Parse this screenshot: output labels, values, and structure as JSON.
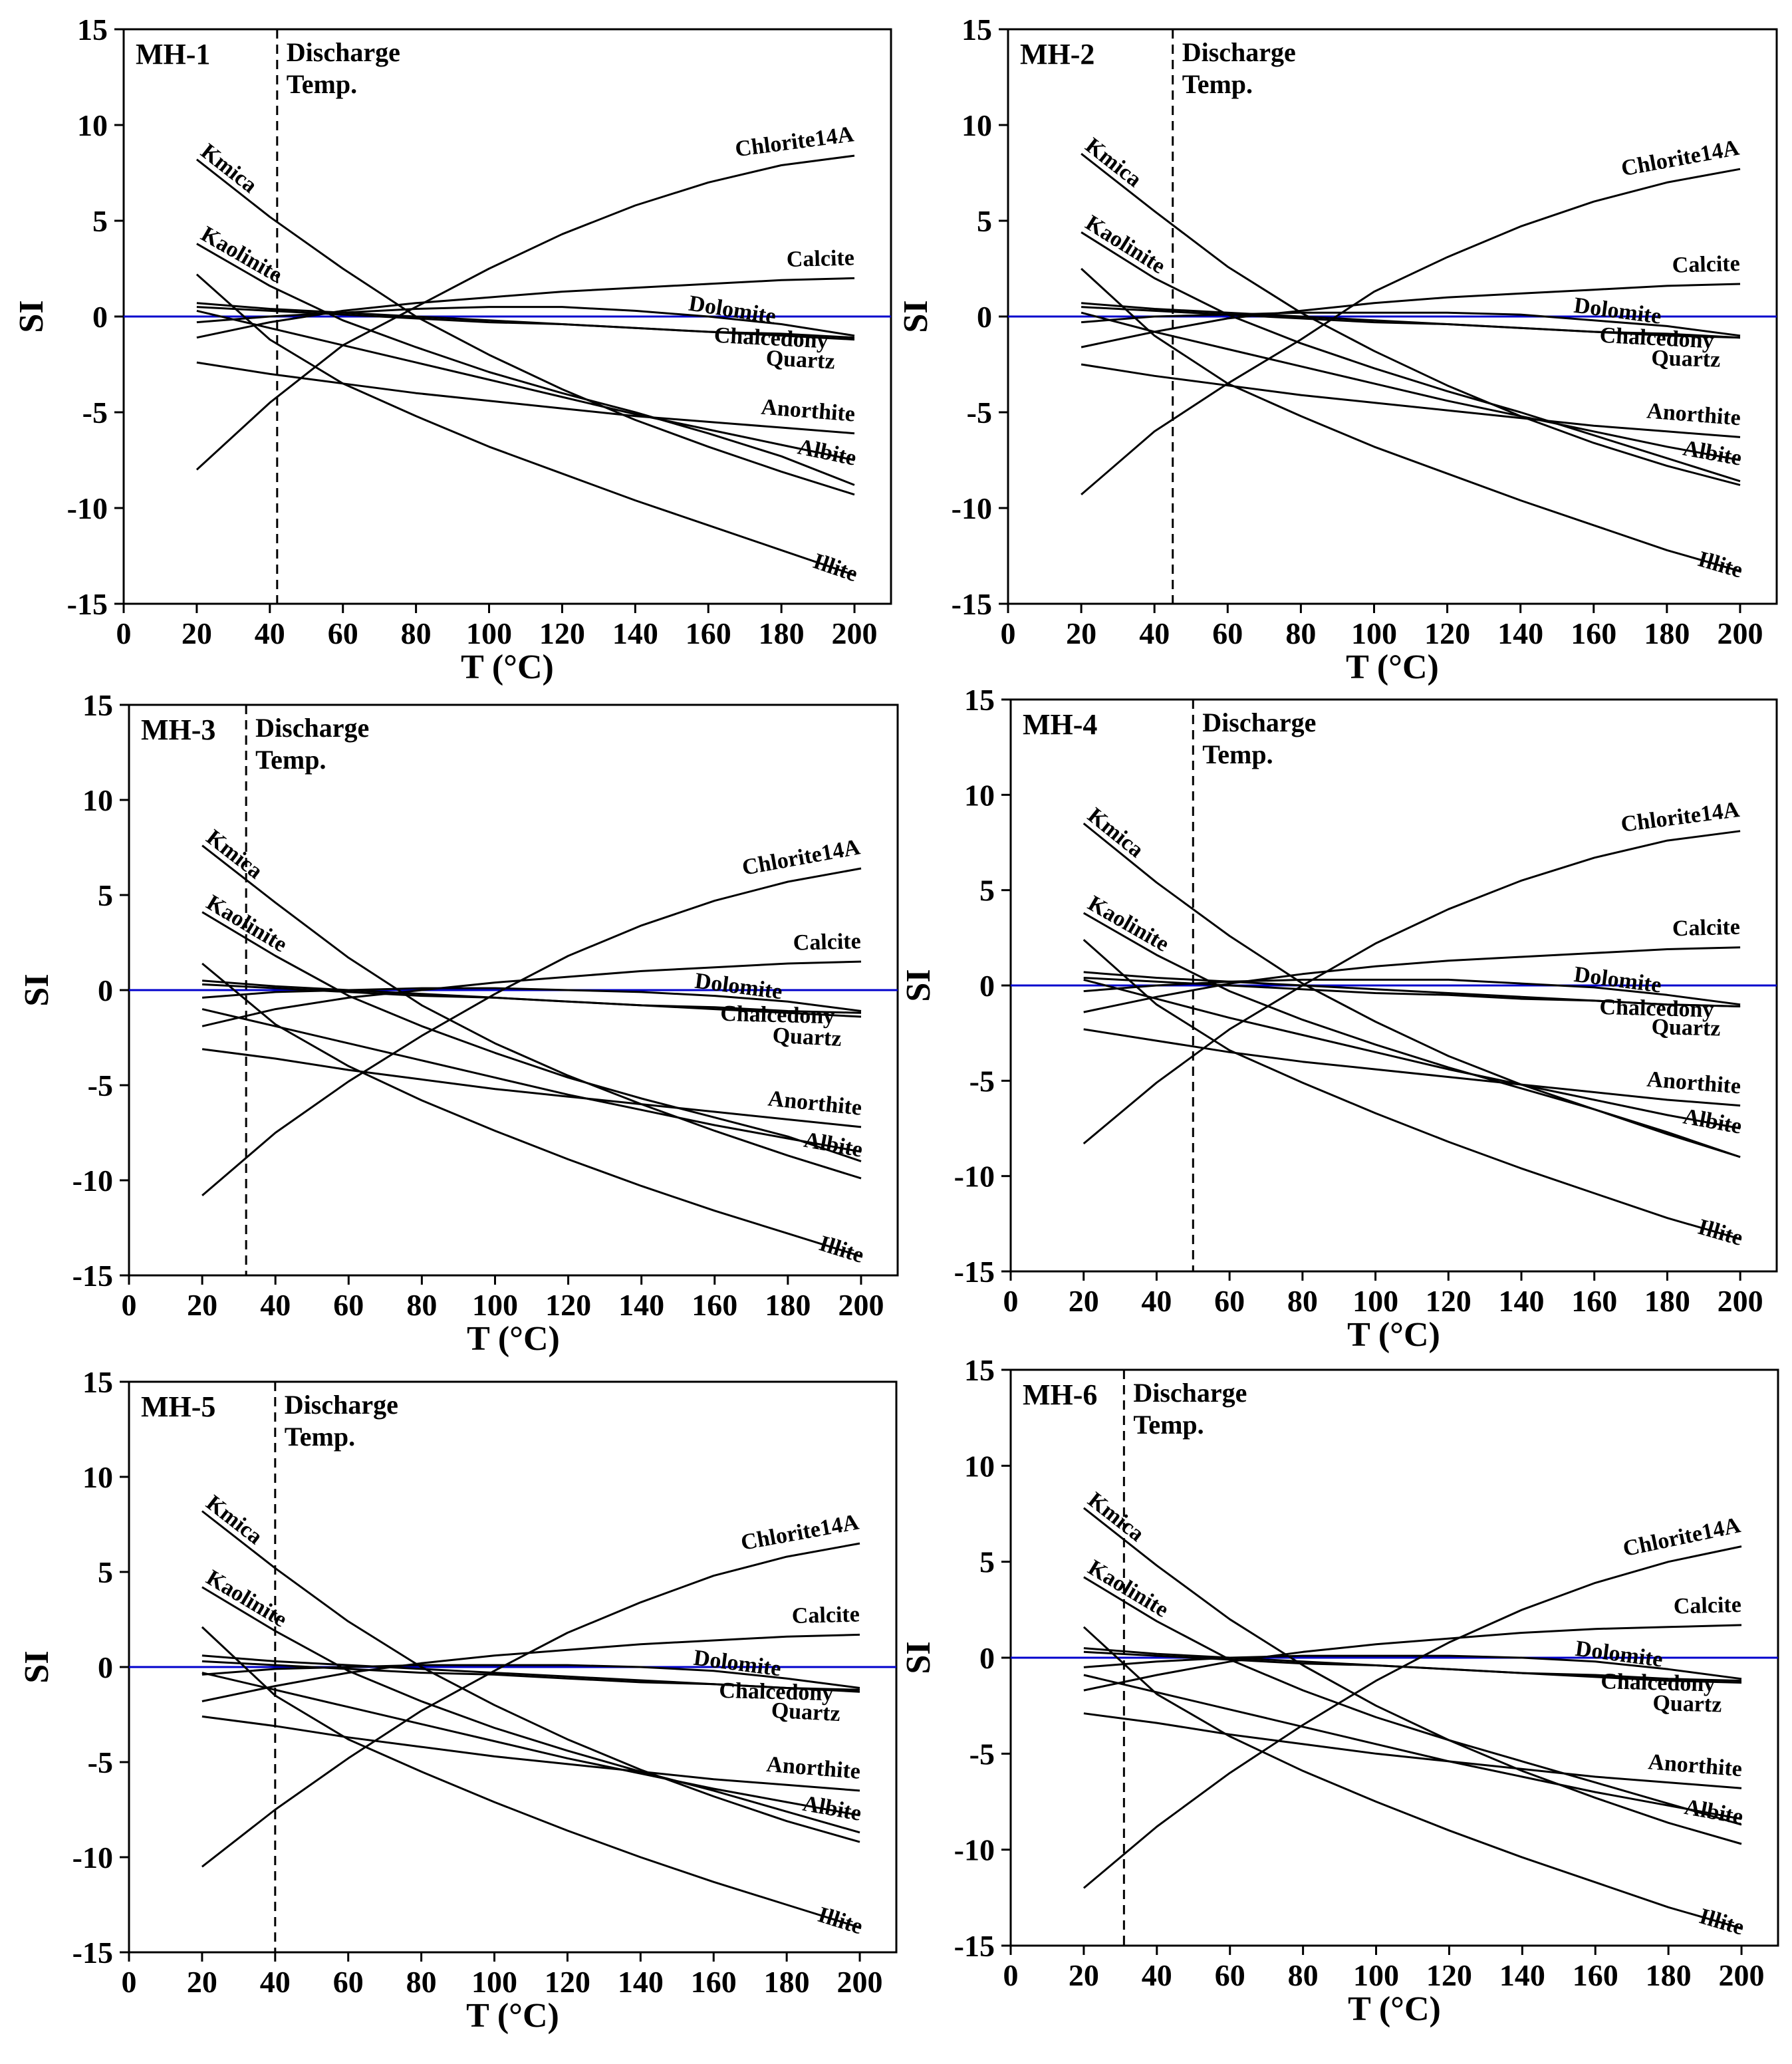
{
  "figure": {
    "x_axis_title": "T (°C)",
    "y_axis_title": "SI",
    "discharge_label_line1": "Discharge",
    "discharge_label_line2": "Temp.",
    "colors": {
      "curve": "#000000",
      "zero_line": "#0000cc",
      "axis": "#000000"
    }
  },
  "chart_data": [
    {
      "type": "line",
      "title": "MH-1",
      "xlabel": "T (°C)",
      "ylabel": "SI",
      "xlim": [
        0,
        210
      ],
      "ylim": [
        -15,
        15
      ],
      "xticks": [
        0,
        20,
        40,
        60,
        80,
        100,
        120,
        140,
        160,
        180,
        200
      ],
      "yticks": [
        -15,
        -10,
        -5,
        0,
        5,
        10,
        15
      ],
      "discharge_temp": 42,
      "x": [
        20,
        40,
        60,
        80,
        100,
        120,
        140,
        160,
        180,
        200
      ],
      "series": [
        {
          "name": "Chlorite14A",
          "values": [
            -8,
            -4.5,
            -1.5,
            0.5,
            2.5,
            4.3,
            5.8,
            7,
            7.9,
            8.4
          ]
        },
        {
          "name": "Kmica",
          "values": [
            8.2,
            5.2,
            2.5,
            0,
            -2,
            -3.8,
            -5.4,
            -6.8,
            -8.1,
            -9.3
          ]
        },
        {
          "name": "Kaolinite",
          "values": [
            3.8,
            1.6,
            -0.2,
            -1.6,
            -2.9,
            -4.0,
            -5.0,
            -6.1,
            -7.3,
            -8.8
          ]
        },
        {
          "name": "Calcite",
          "values": [
            -1.1,
            -0.3,
            0.3,
            0.7,
            1.0,
            1.3,
            1.5,
            1.7,
            1.9,
            2.0
          ]
        },
        {
          "name": "Dolomite",
          "values": [
            -0.3,
            0,
            0.2,
            0.4,
            0.5,
            0.5,
            0.3,
            0,
            -0.4,
            -1.0
          ]
        },
        {
          "name": "Chalcedony",
          "values": [
            0.5,
            0.3,
            0.1,
            -0.1,
            -0.3,
            -0.4,
            -0.6,
            -0.8,
            -0.9,
            -1.1
          ]
        },
        {
          "name": "Quartz",
          "values": [
            0.7,
            0.4,
            0.2,
            0,
            -0.2,
            -0.4,
            -0.6,
            -0.8,
            -1.0,
            -1.2
          ]
        },
        {
          "name": "Anorthite",
          "values": [
            -2.4,
            -3,
            -3.5,
            -4,
            -4.4,
            -4.8,
            -5.2,
            -5.5,
            -5.8,
            -6.1
          ]
        },
        {
          "name": "Albite",
          "values": [
            0.3,
            -0.6,
            -1.5,
            -2.4,
            -3.3,
            -4.2,
            -5.1,
            -5.9,
            -6.7,
            -7.5
          ]
        },
        {
          "name": "Illite",
          "values": [
            2.2,
            -1.2,
            -3.5,
            -5.2,
            -6.8,
            -8.2,
            -9.6,
            -10.9,
            -12.2,
            -13.5
          ]
        }
      ]
    },
    {
      "type": "line",
      "title": "MH-2",
      "xlabel": "T (°C)",
      "ylabel": "SI",
      "xlim": [
        0,
        210
      ],
      "ylim": [
        -15,
        15
      ],
      "xticks": [
        0,
        20,
        40,
        60,
        80,
        100,
        120,
        140,
        160,
        180,
        200
      ],
      "yticks": [
        -15,
        -10,
        -5,
        0,
        5,
        10,
        15
      ],
      "discharge_temp": 45,
      "x": [
        20,
        40,
        60,
        80,
        100,
        120,
        140,
        160,
        180,
        200
      ],
      "series": [
        {
          "name": "Chlorite14A",
          "values": [
            -9.3,
            -6,
            -3.5,
            -1.2,
            1.3,
            3.1,
            4.7,
            6,
            7,
            7.7
          ]
        },
        {
          "name": "Kmica",
          "values": [
            8.5,
            5.5,
            2.6,
            0.2,
            -1.8,
            -3.6,
            -5.2,
            -6.6,
            -7.8,
            -8.8
          ]
        },
        {
          "name": "Kaolinite",
          "values": [
            4.4,
            2.0,
            0.1,
            -1.4,
            -2.7,
            -3.9,
            -5.0,
            -6.2,
            -7.4,
            -8.6
          ]
        },
        {
          "name": "Calcite",
          "values": [
            -1.6,
            -0.8,
            -0.1,
            0.3,
            0.7,
            1.0,
            1.2,
            1.4,
            1.6,
            1.7
          ]
        },
        {
          "name": "Dolomite",
          "values": [
            -0.3,
            0,
            0.1,
            0.2,
            0.2,
            0.2,
            0.1,
            -0.2,
            -0.5,
            -1.0
          ]
        },
        {
          "name": "Chalcedony",
          "values": [
            0.5,
            0.3,
            0.1,
            -0.1,
            -0.3,
            -0.4,
            -0.6,
            -0.8,
            -0.9,
            -1.1
          ]
        },
        {
          "name": "Quartz",
          "values": [
            0.7,
            0.4,
            0.2,
            0,
            -0.2,
            -0.4,
            -0.6,
            -0.8,
            -1.0,
            -1.1
          ]
        },
        {
          "name": "Anorthite",
          "values": [
            -2.5,
            -3.1,
            -3.6,
            -4.1,
            -4.5,
            -4.9,
            -5.3,
            -5.7,
            -6.0,
            -6.3
          ]
        },
        {
          "name": "Albite",
          "values": [
            0.2,
            -0.8,
            -1.7,
            -2.6,
            -3.5,
            -4.4,
            -5.2,
            -6.0,
            -6.8,
            -7.5
          ]
        },
        {
          "name": "Illite",
          "values": [
            2.5,
            -1,
            -3.5,
            -5.2,
            -6.8,
            -8.2,
            -9.6,
            -10.9,
            -12.2,
            -13.3
          ]
        }
      ]
    },
    {
      "type": "line",
      "title": "MH-3",
      "xlabel": "T (°C)",
      "ylabel": "SI",
      "xlim": [
        0,
        210
      ],
      "ylim": [
        -15,
        15
      ],
      "xticks": [
        0,
        20,
        40,
        60,
        80,
        100,
        120,
        140,
        160,
        180,
        200
      ],
      "yticks": [
        -15,
        -10,
        -5,
        0,
        5,
        10,
        15
      ],
      "discharge_temp": 32,
      "x": [
        20,
        40,
        60,
        80,
        100,
        120,
        140,
        160,
        180,
        200
      ],
      "series": [
        {
          "name": "Chlorite14A",
          "values": [
            -10.8,
            -7.5,
            -4.8,
            -2.4,
            -0.2,
            1.8,
            3.4,
            4.7,
            5.7,
            6.4
          ]
        },
        {
          "name": "Kmica",
          "values": [
            7.6,
            4.6,
            1.7,
            -0.8,
            -2.8,
            -4.5,
            -6.0,
            -7.4,
            -8.7,
            -9.9
          ]
        },
        {
          "name": "Kaolinite",
          "values": [
            4.1,
            1.8,
            -0.3,
            -1.9,
            -3.3,
            -4.6,
            -5.7,
            -6.7,
            -7.7,
            -9.0
          ]
        },
        {
          "name": "Calcite",
          "values": [
            -1.9,
            -1.0,
            -0.4,
            0,
            0.4,
            0.7,
            1.0,
            1.2,
            1.4,
            1.5
          ]
        },
        {
          "name": "Dolomite",
          "values": [
            -0.4,
            -0.1,
            0,
            0.1,
            0.1,
            0,
            -0.1,
            -0.3,
            -0.6,
            -1.1
          ]
        },
        {
          "name": "Chalcedony",
          "values": [
            0.3,
            0.1,
            -0.1,
            -0.3,
            -0.4,
            -0.6,
            -0.8,
            -0.9,
            -1.1,
            -1.2
          ]
        },
        {
          "name": "Quartz",
          "values": [
            0.5,
            0.2,
            0,
            -0.2,
            -0.4,
            -0.6,
            -0.8,
            -1.0,
            -1.2,
            -1.4
          ]
        },
        {
          "name": "Anorthite",
          "values": [
            -3.1,
            -3.6,
            -4.2,
            -4.7,
            -5.2,
            -5.6,
            -6.0,
            -6.4,
            -6.8,
            -7.2
          ]
        },
        {
          "name": "Albite",
          "values": [
            -1.0,
            -1.9,
            -2.8,
            -3.7,
            -4.6,
            -5.5,
            -6.3,
            -7.1,
            -7.8,
            -8.5
          ]
        },
        {
          "name": "Illite",
          "values": [
            1.4,
            -1.8,
            -4.0,
            -5.8,
            -7.4,
            -8.9,
            -10.3,
            -11.6,
            -12.8,
            -14.0
          ]
        }
      ]
    },
    {
      "type": "line",
      "title": "MH-4",
      "xlabel": "T (°C)",
      "ylabel": "SI",
      "xlim": [
        0,
        210
      ],
      "ylim": [
        -15,
        15
      ],
      "xticks": [
        0,
        20,
        40,
        60,
        80,
        100,
        120,
        140,
        160,
        180,
        200
      ],
      "yticks": [
        -15,
        -10,
        -5,
        0,
        5,
        10,
        15
      ],
      "discharge_temp": 50,
      "x": [
        20,
        40,
        60,
        80,
        100,
        120,
        140,
        160,
        180,
        200
      ],
      "series": [
        {
          "name": "Chlorite14A",
          "values": [
            -8.3,
            -5.1,
            -2.3,
            0,
            2.2,
            4,
            5.5,
            6.7,
            7.6,
            8.1
          ]
        },
        {
          "name": "Kmica",
          "values": [
            8.5,
            5.4,
            2.6,
            0.1,
            -1.9,
            -3.7,
            -5.2,
            -6.5,
            -7.8,
            -9.0
          ]
        },
        {
          "name": "Kaolinite",
          "values": [
            3.8,
            1.6,
            -0.3,
            -1.8,
            -3.1,
            -4.3,
            -5.4,
            -6.5,
            -7.7,
            -9.0
          ]
        },
        {
          "name": "Calcite",
          "values": [
            -1.4,
            -0.6,
            0.1,
            0.6,
            1.0,
            1.3,
            1.5,
            1.7,
            1.9,
            2.0
          ]
        },
        {
          "name": "Dolomite",
          "values": [
            -0.3,
            0,
            0.2,
            0.3,
            0.3,
            0.3,
            0.1,
            -0.1,
            -0.5,
            -1.0
          ]
        },
        {
          "name": "Chalcedony",
          "values": [
            0.4,
            0.2,
            0,
            -0.2,
            -0.4,
            -0.5,
            -0.7,
            -0.8,
            -1.0,
            -1.1
          ]
        },
        {
          "name": "Quartz",
          "values": [
            0.7,
            0.4,
            0.2,
            0,
            -0.2,
            -0.4,
            -0.6,
            -0.8,
            -1.0,
            -1.1
          ]
        },
        {
          "name": "Anorthite",
          "values": [
            -2.3,
            -2.9,
            -3.5,
            -4.0,
            -4.4,
            -4.8,
            -5.2,
            -5.6,
            -6.0,
            -6.3
          ]
        },
        {
          "name": "Albite",
          "values": [
            0.3,
            -0.7,
            -1.7,
            -2.6,
            -3.5,
            -4.4,
            -5.2,
            -6.0,
            -6.8,
            -7.5
          ]
        },
        {
          "name": "Illite",
          "values": [
            2.4,
            -1.0,
            -3.4,
            -5.1,
            -6.7,
            -8.2,
            -9.6,
            -10.9,
            -12.2,
            -13.3
          ]
        }
      ]
    },
    {
      "type": "line",
      "title": "MH-5",
      "xlabel": "T (°C)",
      "ylabel": "SI",
      "xlim": [
        0,
        210
      ],
      "ylim": [
        -15,
        15
      ],
      "xticks": [
        0,
        20,
        40,
        60,
        80,
        100,
        120,
        140,
        160,
        180,
        200
      ],
      "yticks": [
        -15,
        -10,
        -5,
        0,
        5,
        10,
        15
      ],
      "discharge_temp": 40,
      "x": [
        20,
        40,
        60,
        80,
        100,
        120,
        140,
        160,
        180,
        200
      ],
      "series": [
        {
          "name": "Chlorite14A",
          "values": [
            -10.5,
            -7.5,
            -4.8,
            -2.3,
            -0.2,
            1.8,
            3.4,
            4.8,
            5.8,
            6.5
          ]
        },
        {
          "name": "Kmica",
          "values": [
            8.2,
            5.2,
            2.4,
            0,
            -2,
            -3.8,
            -5.4,
            -6.8,
            -8.1,
            -9.2
          ]
        },
        {
          "name": "Kaolinite",
          "values": [
            4.2,
            1.9,
            -0.2,
            -1.8,
            -3.2,
            -4.4,
            -5.5,
            -6.5,
            -7.6,
            -8.7
          ]
        },
        {
          "name": "Calcite",
          "values": [
            -1.8,
            -1.0,
            -0.3,
            0.2,
            0.6,
            0.9,
            1.2,
            1.4,
            1.6,
            1.7
          ]
        },
        {
          "name": "Dolomite",
          "values": [
            -0.4,
            -0.1,
            0,
            0.1,
            0.1,
            0.1,
            0,
            -0.2,
            -0.6,
            -1.1
          ]
        },
        {
          "name": "Chalcedony",
          "values": [
            0.3,
            0.1,
            -0.1,
            -0.3,
            -0.4,
            -0.6,
            -0.8,
            -0.9,
            -1.1,
            -1.2
          ]
        },
        {
          "name": "Quartz",
          "values": [
            0.6,
            0.3,
            0.1,
            -0.1,
            -0.3,
            -0.5,
            -0.7,
            -0.9,
            -1.1,
            -1.3
          ]
        },
        {
          "name": "Anorthite",
          "values": [
            -2.6,
            -3.1,
            -3.7,
            -4.2,
            -4.7,
            -5.1,
            -5.5,
            -5.9,
            -6.2,
            -6.5
          ]
        },
        {
          "name": "Albite",
          "values": [
            -0.3,
            -1.2,
            -2.1,
            -3.0,
            -3.9,
            -4.8,
            -5.6,
            -6.4,
            -7.1,
            -7.8
          ]
        },
        {
          "name": "Illite",
          "values": [
            2.1,
            -1.5,
            -3.8,
            -5.5,
            -7.1,
            -8.6,
            -10.0,
            -11.3,
            -12.5,
            -13.7
          ]
        }
      ]
    },
    {
      "type": "line",
      "title": "MH-6",
      "xlabel": "T (°C)",
      "ylabel": "SI",
      "xlim": [
        0,
        210
      ],
      "ylim": [
        -15,
        15
      ],
      "xticks": [
        0,
        20,
        40,
        60,
        80,
        100,
        120,
        140,
        160,
        180,
        200
      ],
      "yticks": [
        -15,
        -10,
        -5,
        0,
        5,
        10,
        15
      ],
      "discharge_temp": 31,
      "x": [
        20,
        40,
        60,
        80,
        100,
        120,
        140,
        160,
        180,
        200
      ],
      "series": [
        {
          "name": "Chlorite14A",
          "values": [
            -12,
            -8.8,
            -6,
            -3.5,
            -1.2,
            0.8,
            2.5,
            3.9,
            5.0,
            5.8
          ]
        },
        {
          "name": "Kmica",
          "values": [
            7.8,
            4.8,
            2.0,
            -0.4,
            -2.5,
            -4.3,
            -5.9,
            -7.3,
            -8.6,
            -9.7
          ]
        },
        {
          "name": "Kaolinite",
          "values": [
            4.2,
            1.9,
            -0.1,
            -1.7,
            -3.1,
            -4.3,
            -5.4,
            -6.5,
            -7.6,
            -8.7
          ]
        },
        {
          "name": "Calcite",
          "values": [
            -1.7,
            -0.9,
            -0.2,
            0.3,
            0.7,
            1.0,
            1.3,
            1.5,
            1.6,
            1.7
          ]
        },
        {
          "name": "Dolomite",
          "values": [
            -0.5,
            -0.2,
            0,
            0.1,
            0.1,
            0.1,
            0,
            -0.2,
            -0.6,
            -1.1
          ]
        },
        {
          "name": "Chalcedony",
          "values": [
            0.3,
            0.1,
            -0.1,
            -0.3,
            -0.4,
            -0.6,
            -0.8,
            -0.9,
            -1.1,
            -1.2
          ]
        },
        {
          "name": "Quartz",
          "values": [
            0.5,
            0.2,
            0,
            -0.2,
            -0.4,
            -0.6,
            -0.8,
            -1.0,
            -1.2,
            -1.3
          ]
        },
        {
          "name": "Anorthite",
          "values": [
            -2.9,
            -3.4,
            -4.0,
            -4.5,
            -5.0,
            -5.4,
            -5.8,
            -6.2,
            -6.5,
            -6.8
          ]
        },
        {
          "name": "Albite",
          "values": [
            -0.9,
            -1.8,
            -2.7,
            -3.6,
            -4.5,
            -5.4,
            -6.2,
            -7.0,
            -7.7,
            -8.4
          ]
        },
        {
          "name": "Illite",
          "values": [
            1.6,
            -1.9,
            -4.1,
            -5.9,
            -7.5,
            -9.0,
            -10.4,
            -11.7,
            -13.0,
            -14.1
          ]
        }
      ]
    }
  ]
}
